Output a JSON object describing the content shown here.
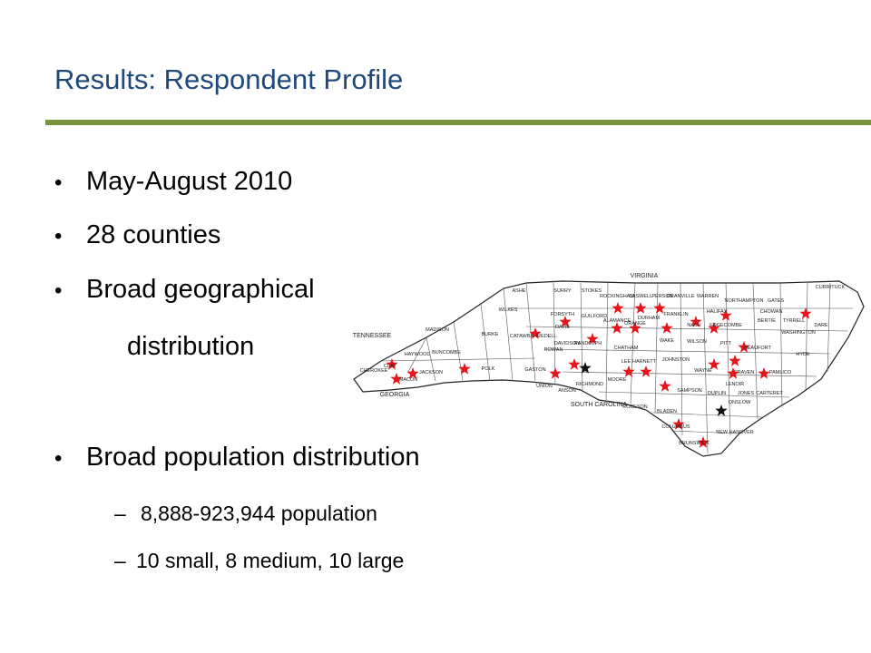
{
  "header": {
    "title": "Results:  Respondent Profile"
  },
  "bullets": [
    "May-August 2010",
    "28 counties",
    "Broad geographical",
    "distribution",
    "Broad population distribution"
  ],
  "sub_bullets": [
    "8,888-923,944 population",
    "10 small, 8 medium, 10 large"
  ],
  "map": {
    "states": [
      "VIRGINIA",
      "TENNESSEE",
      "GEORGIA",
      "SOUTH CAROLINA"
    ],
    "counties": [
      "ASHE",
      "SURRY",
      "STOKES",
      "ROCKINGHAM",
      "CASWELL",
      "PERSON",
      "GRANVILLE",
      "WARREN",
      "NORTHAMPTON",
      "GATES",
      "CURRITUCK",
      "WILKES",
      "FORSYTH",
      "GUILFORD",
      "ALAMANCE",
      "ORANGE",
      "DURHAM",
      "FRANKLIN",
      "NASH",
      "EDGECOMBE",
      "HALIFAX",
      "BERTIE",
      "CHOWAN",
      "TYRRELL",
      "DARE",
      "WASHINGTON",
      "MADISON",
      "BUNCOMBE",
      "BURKE",
      "CATAWBA",
      "IREDELL",
      "DAVIE",
      "ROWAN",
      "DAVIDSON",
      "RANDOLPH",
      "CHATHAM",
      "WAKE",
      "JOHNSTON",
      "WILSON",
      "PITT",
      "BEAUFORT",
      "HYDE",
      "HAYWOOD",
      "JACKSON",
      "POLK",
      "GASTON",
      "UNION",
      "ANSON",
      "RICHMOND",
      "MOORE",
      "LEE",
      "HARNETT",
      "SAMPSON",
      "DUPLIN",
      "WAYNE",
      "LENOIR",
      "JONES",
      "CRAVEN",
      "PAMLICO",
      "CARTERET",
      "ONSLOW",
      "ROBESON",
      "BLADEN",
      "COLUMBUS",
      "BRUNSWICK",
      "NEW HANOVER",
      "CHEROKEE",
      "CLAY",
      "MACON"
    ]
  }
}
